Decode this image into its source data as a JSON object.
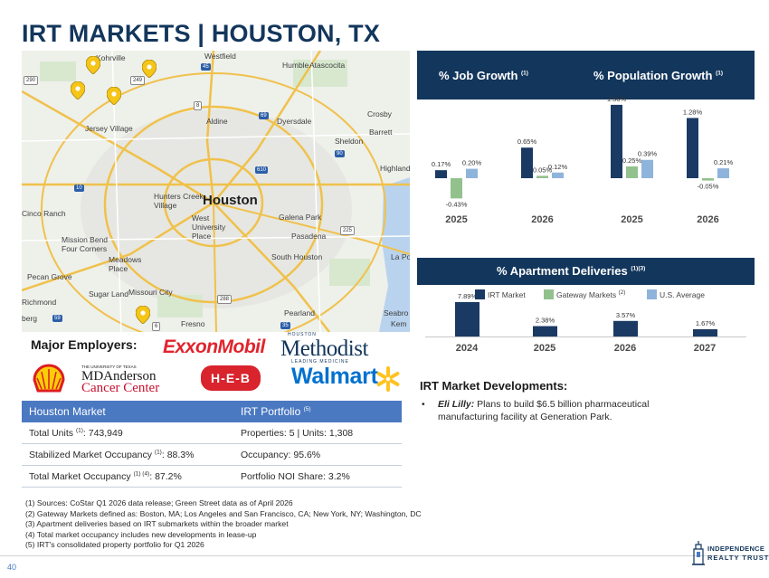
{
  "page": {
    "title": "IRT MARKETS | HOUSTON, TX",
    "page_number": "40"
  },
  "map": {
    "city_label": "Houston",
    "labels": [
      "Kohrville",
      "Westfield",
      "Humble",
      "Atascocita",
      "Jersey Village",
      "Aldine",
      "Dyersdale",
      "Crosby",
      "Barrett",
      "Sheldon",
      "Highlands",
      "Hunters Creek Village",
      "Cinco Ranch",
      "West University Place",
      "Galena Park",
      "Mission Bend",
      "Four Corners",
      "Pasadena",
      "Meadows Place",
      "South Houston",
      "La Po",
      "Pecan Grove",
      "Sugar Land",
      "Missouri City",
      "Richmond",
      "Pearland",
      "Seabro",
      "Kem",
      "Fresno",
      "berg"
    ],
    "highways": [
      "290",
      "249",
      "45",
      "69",
      "8",
      "90",
      "10",
      "610",
      "225",
      "59",
      "288",
      "35",
      "6"
    ],
    "pin_color": "#f5c518"
  },
  "employers": {
    "title": "Major Employers:",
    "logos": {
      "exxon": "ExxonMobil",
      "methodist_top": "HOUSTON",
      "methodist": "Methodist",
      "methodist_bottom": "LEADING MEDICINE",
      "shell": "shell-logo",
      "mda_top": "THE UNIVERSITY OF TEXAS",
      "mda_line1": "MDAnderson",
      "mda_line2": "Cancer Center",
      "heb": "H-E-B",
      "walmart": "Walmart"
    }
  },
  "table": {
    "header": {
      "left": "Houston Market",
      "right": "IRT Portfolio",
      "right_sup": "(5)"
    },
    "rows": [
      {
        "left": "Total Units ",
        "left_sup": "(1)",
        "left_value": ": 743,949",
        "right": "Properties: 5 | Units: 1,308"
      },
      {
        "left": "Stabilized Market Occupancy ",
        "left_sup": "(1)",
        "left_value": ": 88.3%",
        "right": "Occupancy: 95.6%"
      },
      {
        "left": "Total Market Occupancy ",
        "left_sup": "(1) (4)",
        "left_value": ": 87.2%",
        "right": "Portfolio NOI Share: 3.2%"
      }
    ]
  },
  "footnotes": [
    "(1)  Sources: CoStar Q1 2026 data release; Green Street data as of April 2026",
    "(2)  Gateway Markets defined as: Boston, MA; Los Angeles and San Francisco, CA; New York, NY; Washington, DC",
    "(3)  Apartment deliveries based on IRT submarkets within the broader market",
    "(4)  Total market occupancy includes new developments in lease-up",
    "(5)  IRT's consolidated property portfolio for Q1 2026"
  ],
  "logo": {
    "line1": "INDEPENDENCE",
    "line2": "REALTY TRUST"
  },
  "charts": {
    "job_title": "% Job Growth",
    "job_sup": "(1)",
    "pop_title": "% Population Growth",
    "pop_sup": "(1)",
    "deliv_title": "% Apartment Deliveries",
    "deliv_sup": "(1)(3)",
    "legend": [
      {
        "label": "IRT Market",
        "sup": "",
        "color": "#1a3a64"
      },
      {
        "label": "Gateway Markets",
        "sup": "(2)",
        "color": "#93c18e"
      },
      {
        "label": "U.S. Average",
        "sup": "",
        "color": "#8fb4dc"
      }
    ]
  },
  "chart_data": [
    {
      "type": "bar",
      "title": "% Job Growth",
      "categories": [
        "2025",
        "2026"
      ],
      "series": [
        {
          "name": "IRT Market",
          "values": [
            0.17,
            0.65
          ],
          "labels": [
            "0.17%",
            "0.65%"
          ]
        },
        {
          "name": "Gateway Markets",
          "values": [
            -0.43,
            0.05
          ],
          "labels": [
            "-0.43%",
            "0.05%"
          ]
        },
        {
          "name": "U.S. Average",
          "values": [
            0.2,
            0.12
          ],
          "labels": [
            "0.20%",
            "0.12%"
          ]
        }
      ],
      "xlabel": "",
      "ylabel": "",
      "grid": false
    },
    {
      "type": "bar",
      "title": "% Population Growth",
      "categories": [
        "2025",
        "2026"
      ],
      "series": [
        {
          "name": "IRT Market",
          "values": [
            1.56,
            1.28
          ],
          "labels": [
            "1.56%",
            "1.28%"
          ]
        },
        {
          "name": "Gateway Markets",
          "values": [
            0.25,
            -0.05
          ],
          "labels": [
            "0.25%",
            "-0.05%"
          ]
        },
        {
          "name": "U.S. Average",
          "values": [
            0.39,
            0.21
          ],
          "labels": [
            "0.39%",
            "0.21%"
          ]
        }
      ],
      "xlabel": "",
      "ylabel": "",
      "grid": false
    },
    {
      "type": "bar",
      "title": "% Apartment Deliveries",
      "categories": [
        "2024",
        "2025",
        "2026",
        "2027"
      ],
      "series": [
        {
          "name": "IRT Market",
          "values": [
            7.89,
            2.38,
            3.57,
            1.67
          ],
          "labels": [
            "7.89%",
            "2.38%",
            "3.57%",
            "1.67%"
          ]
        }
      ],
      "xlabel": "",
      "ylabel": "",
      "grid": false
    }
  ],
  "developments": {
    "title": "IRT Market Developments:",
    "items": [
      {
        "name": "Eli Lilly:",
        "text": " Plans to build $6.5 billion pharmaceutical manufacturing facility at Generation Park."
      }
    ]
  }
}
